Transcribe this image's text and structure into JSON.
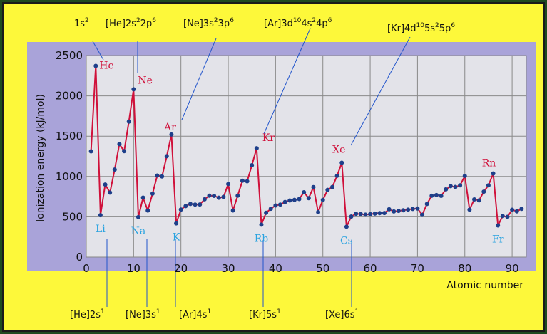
{
  "frame": {
    "background": "#fdf83a",
    "plot_background": "#e3e3e9",
    "shadow": "#a9a3d9",
    "line_color": "#d0103a",
    "point_color": "#1e3f8a",
    "leader_color": "#2255cc"
  },
  "chart_data": {
    "type": "line",
    "title": "",
    "xlabel": "Atomic number",
    "ylabel": "Ionization energy (kJ/mol)",
    "xlim": [
      0,
      93
    ],
    "ylim": [
      0,
      2500
    ],
    "xticks": [
      "0",
      "10",
      "20",
      "30",
      "40",
      "50",
      "60",
      "70",
      "80",
      "90"
    ],
    "yticks": [
      "0",
      "500",
      "1000",
      "1500",
      "2000",
      "2500"
    ],
    "grid": true,
    "series": [
      {
        "x": [
          1,
          2,
          3,
          4,
          5,
          6,
          7,
          8,
          9,
          10,
          11,
          12,
          13,
          14,
          15,
          16,
          17,
          18,
          19,
          20,
          21,
          22,
          23,
          24,
          25,
          26,
          27,
          28,
          29,
          30,
          31,
          32,
          33,
          34,
          35,
          36,
          37,
          38,
          39,
          40,
          41,
          42,
          43,
          44,
          45,
          46,
          47,
          48,
          49,
          50,
          51,
          52,
          53,
          54,
          55,
          56,
          57,
          58,
          59,
          60,
          61,
          62,
          63,
          64,
          65,
          66,
          67,
          68,
          69,
          70,
          71,
          72,
          73,
          74,
          75,
          76,
          77,
          78,
          79,
          80,
          81,
          82,
          83,
          84,
          85,
          86,
          87,
          88,
          89,
          90,
          91,
          92
        ],
        "y": [
          1312,
          2372,
          520,
          900,
          801,
          1086,
          1402,
          1314,
          1681,
          2081,
          496,
          738,
          578,
          787,
          1012,
          1000,
          1251,
          1521,
          419,
          590,
          633,
          659,
          651,
          653,
          717,
          762,
          760,
          737,
          746,
          906,
          579,
          762,
          947,
          941,
          1140,
          1351,
          403,
          550,
          600,
          640,
          652,
          684,
          702,
          710,
          720,
          804,
          731,
          868,
          558,
          709,
          834,
          869,
          1008,
          1170,
          376,
          503,
          538,
          534,
          527,
          533,
          540,
          545,
          547,
          593,
          566,
          573,
          581,
          589,
          597,
          603,
          524,
          659,
          761,
          770,
          760,
          840,
          880,
          870,
          890,
          1007,
          589,
          716,
          703,
          812,
          890,
          1037,
          393,
          509,
          499,
          587,
          568,
          598
        ]
      }
    ],
    "element_labels": [
      {
        "symbol": "He",
        "z": 2,
        "group": "max"
      },
      {
        "symbol": "Ne",
        "z": 10,
        "group": "max"
      },
      {
        "symbol": "Ar",
        "z": 18,
        "group": "max"
      },
      {
        "symbol": "Kr",
        "z": 36,
        "group": "max"
      },
      {
        "symbol": "Xe",
        "z": 54,
        "group": "max"
      },
      {
        "symbol": "Rn",
        "z": 86,
        "group": "max"
      },
      {
        "symbol": "Li",
        "z": 3,
        "group": "min"
      },
      {
        "symbol": "Na",
        "z": 11,
        "group": "min"
      },
      {
        "symbol": "K",
        "z": 19,
        "group": "min"
      },
      {
        "symbol": "Rb",
        "z": 37,
        "group": "min"
      },
      {
        "symbol": "Cs",
        "z": 55,
        "group": "min"
      },
      {
        "symbol": "Fr",
        "z": 87,
        "group": "min"
      }
    ],
    "top_configurations": [
      {
        "z": 2,
        "core": "1s",
        "sup": "2",
        "tail": "",
        "tail_sup": "",
        "tail2": "",
        "tail2_sup": ""
      },
      {
        "z": 10,
        "core": "[He]2s",
        "sup": "2",
        "tail": "2p",
        "tail_sup": "6",
        "tail2": "",
        "tail2_sup": ""
      },
      {
        "z": 18,
        "core": "[Ne]3s",
        "sup": "2",
        "tail": "3p",
        "tail_sup": "6",
        "tail2": "",
        "tail2_sup": ""
      },
      {
        "z": 36,
        "core": "[Ar]3d",
        "sup": "10",
        "tail": "4s",
        "tail_sup": "2",
        "tail2": "4p",
        "tail2_sup": "6"
      },
      {
        "z": 54,
        "core": "[Kr]4d",
        "sup": "10",
        "tail": "5s",
        "tail_sup": "2",
        "tail2": "5p",
        "tail2_sup": "6"
      }
    ],
    "bottom_configurations": [
      {
        "z": 3,
        "core": "[He]2s",
        "sup": "1"
      },
      {
        "z": 11,
        "core": "[Ne]3s",
        "sup": "1"
      },
      {
        "z": 19,
        "core": "[Ar]4s",
        "sup": "1"
      },
      {
        "z": 37,
        "core": "[Kr]5s",
        "sup": "1"
      },
      {
        "z": 55,
        "core": "[Xe]6s",
        "sup": "1"
      }
    ]
  }
}
